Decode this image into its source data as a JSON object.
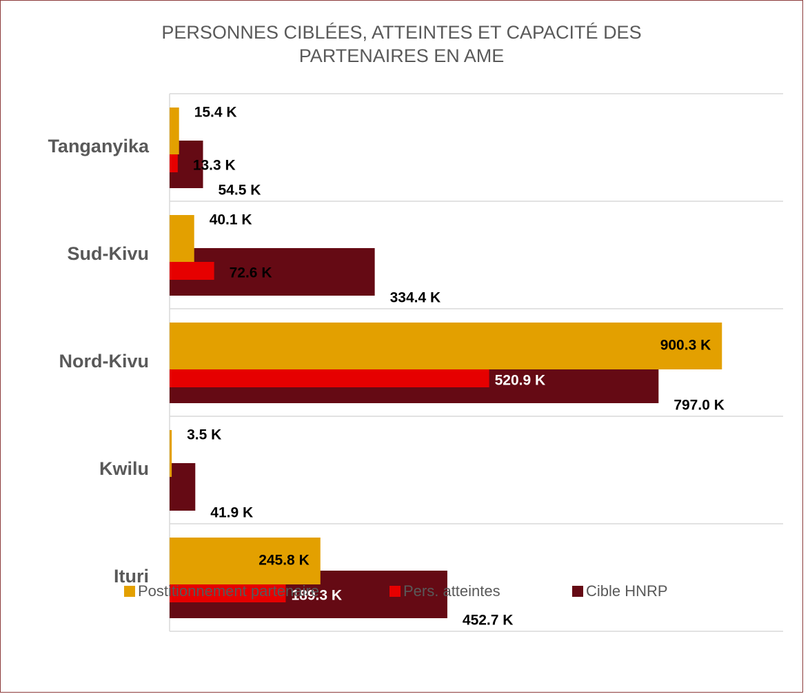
{
  "chart_data": {
    "type": "hbar-overlap",
    "title": "PERSONNES CIBLÉES, ATTEINTES ET CAPACITÉ DES PARTENAIRES EN AME",
    "categories": [
      "Tanganyika",
      "Sud-Kivu",
      "Nord-Kivu",
      "Kwilu",
      "Ituri"
    ],
    "xlim": [
      0,
      1000
    ],
    "grid": true,
    "legend": "bottom",
    "series": [
      {
        "name": "Postitionnement partenaire",
        "color": "#e3a000",
        "values": [
          15.4,
          40.1,
          900.3,
          3.5,
          245.8
        ],
        "value_labels": [
          "15.4 K",
          "40.1 K",
          "900.3 K",
          "3.5 K",
          "245.8 K"
        ]
      },
      {
        "name": "Pers. atteintes",
        "color": "#e60000",
        "values": [
          13.3,
          72.6,
          520.9,
          null,
          189.3
        ],
        "value_labels": [
          "13.3 K",
          "72.6 K",
          "520.9 K",
          null,
          "189.3 K"
        ]
      },
      {
        "name": "Cible HNRP",
        "color": "#650a14",
        "values": [
          54.5,
          334.4,
          797.0,
          41.9,
          452.7
        ],
        "value_labels": [
          "54.5 K",
          "334.4 K",
          "797.0 K",
          "41.9 K",
          "452.7 K"
        ]
      }
    ]
  }
}
